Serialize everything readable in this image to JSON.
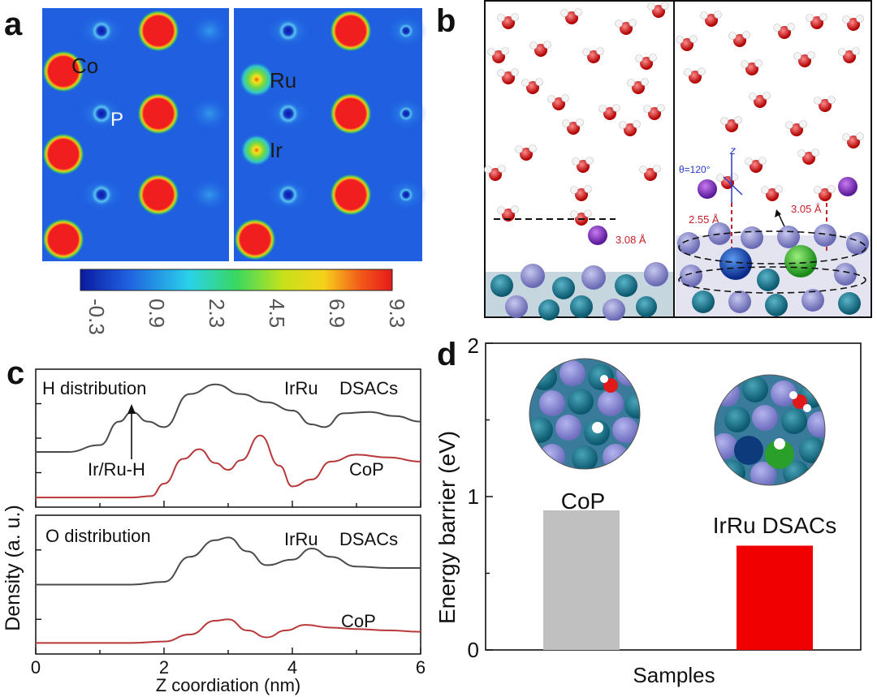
{
  "panels": {
    "a": "a",
    "b": "b",
    "c": "c",
    "d": "d"
  },
  "panel_a": {
    "maps": [
      {
        "name": "left",
        "labels": [
          "Co",
          "P"
        ]
      },
      {
        "name": "right",
        "labels": [
          "Ru",
          "Ir"
        ]
      }
    ],
    "colorbar": {
      "ticks": [
        "-0.3",
        "0.9",
        "2.3",
        "4.5",
        "6.9",
        "9.3"
      ]
    }
  },
  "panel_b": {
    "annotations": {
      "left_dist": "3.08 Å",
      "theta": "θ=120°",
      "z_axis": "z",
      "dist_a": "2.55 Å",
      "dist_b": "3.05 Å"
    }
  },
  "colors": {
    "grey_line": "#4a4a4a",
    "red_line": "#b8383a",
    "bar_cop": "#c0c0c0",
    "bar_irru": "#f00000",
    "map_bg": "#1f5fe0",
    "map_hot": "#f01e1e"
  },
  "chart_data": [
    {
      "id": "c-top",
      "type": "line",
      "title": "H distribution",
      "xlabel": "Z coordiation (nm)",
      "ylabel": "Density (a. u.)",
      "xlim": [
        0,
        6
      ],
      "xticks": [
        "0",
        "2",
        "4",
        "6"
      ],
      "series": [
        {
          "name": "IrRu DSACs",
          "x": [
            0,
            0.5,
            1.0,
            1.3,
            1.5,
            1.75,
            2.0,
            2.4,
            2.8,
            3.2,
            3.6,
            4.0,
            4.3,
            4.5,
            4.8,
            5.2,
            5.6,
            6.0
          ],
          "y": [
            0.4,
            0.4,
            0.45,
            0.62,
            0.69,
            0.62,
            0.58,
            0.82,
            0.89,
            0.82,
            0.76,
            0.7,
            0.6,
            0.58,
            0.68,
            0.69,
            0.66,
            0.62
          ]
        },
        {
          "name": "CoP",
          "x": [
            0,
            0.5,
            1.0,
            1.5,
            1.8,
            2.0,
            2.3,
            2.55,
            2.8,
            3.0,
            3.2,
            3.5,
            3.8,
            4.0,
            4.3,
            4.6,
            5.0,
            5.5,
            6.0
          ],
          "y": [
            0.07,
            0.07,
            0.07,
            0.07,
            0.08,
            0.17,
            0.35,
            0.42,
            0.32,
            0.27,
            0.34,
            0.52,
            0.3,
            0.15,
            0.2,
            0.33,
            0.38,
            0.36,
            0.33
          ]
        }
      ],
      "annotations": [
        "IrRu",
        "DSACs",
        "CoP",
        "Ir/Ru-H"
      ]
    },
    {
      "id": "c-bottom",
      "type": "line",
      "title": "O distribution",
      "xlim": [
        0,
        6
      ],
      "series": [
        {
          "name": "IrRu DSACs",
          "x": [
            0,
            1.5,
            2.0,
            2.4,
            2.8,
            3.0,
            3.3,
            3.6,
            4.0,
            4.3,
            4.6,
            5.0,
            5.5,
            6.0
          ],
          "y": [
            0.5,
            0.5,
            0.52,
            0.7,
            0.82,
            0.84,
            0.74,
            0.64,
            0.68,
            0.76,
            0.7,
            0.63,
            0.62,
            0.62
          ]
        },
        {
          "name": "CoP",
          "x": [
            0,
            1.5,
            2.0,
            2.4,
            2.8,
            3.0,
            3.3,
            3.6,
            3.9,
            4.2,
            4.6,
            5.0,
            5.5,
            6.0
          ],
          "y": [
            0.08,
            0.08,
            0.09,
            0.14,
            0.24,
            0.25,
            0.17,
            0.12,
            0.17,
            0.21,
            0.19,
            0.18,
            0.17,
            0.16
          ]
        }
      ],
      "annotations": [
        "IrRu",
        "DSACs",
        "CoP"
      ]
    },
    {
      "id": "d",
      "type": "bar",
      "categories": [
        "CoP",
        "IrRu DSACs"
      ],
      "values": [
        0.91,
        0.68
      ],
      "xlabel": "Samples",
      "ylabel": "Energy barrier (eV)",
      "ylim": [
        0,
        2
      ],
      "yticks": [
        "0",
        "1",
        "2"
      ]
    }
  ]
}
